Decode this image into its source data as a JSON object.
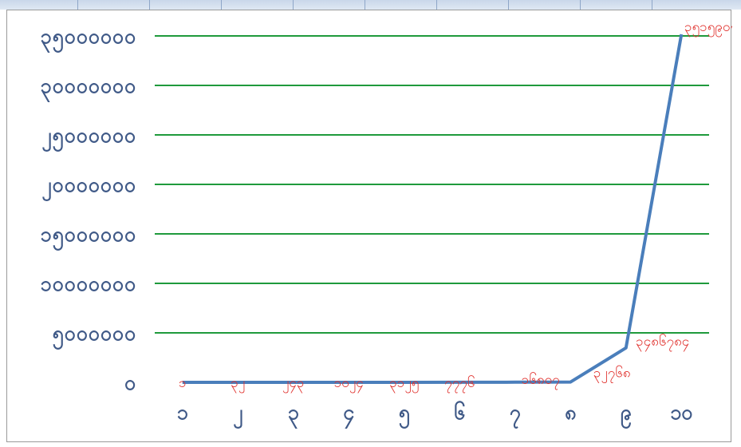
{
  "chart_data": {
    "type": "line",
    "title": "",
    "xlabel": "",
    "ylabel": "",
    "categories": [
      "၁",
      "၂",
      "၃",
      "၄",
      "၅",
      "၆",
      "၇",
      "၈",
      "၉",
      "၁၀"
    ],
    "series": [
      {
        "values": [
          1,
          32,
          243,
          1024,
          3125,
          7776,
          16807,
          32768,
          3486784,
          35159076
        ]
      }
    ],
    "data_labels": [
      "၁",
      "၃၂",
      "၂၄၃",
      "၁၀၂၄",
      "၃၁၂၅",
      "၇၇၇၆",
      "၁၆၈၀၇",
      "၃၂၇၆၈",
      "၃၄၈၆၇၈၄",
      "၃၅၁၅၉၀၇၆"
    ],
    "y_ticks": [
      {
        "value": 0,
        "label": "၀"
      },
      {
        "value": 5000000,
        "label": "၅၀၀၀၀၀၀"
      },
      {
        "value": 10000000,
        "label": "၁၀၀၀၀၀၀၀"
      },
      {
        "value": 15000000,
        "label": "၁၅၀၀၀၀၀၀"
      },
      {
        "value": 20000000,
        "label": "၂၀၀၀၀၀၀၀"
      },
      {
        "value": 25000000,
        "label": "၂၅၀၀၀၀၀၀"
      },
      {
        "value": 30000000,
        "label": "၃၀၀၀၀၀၀၀"
      },
      {
        "value": 35000000,
        "label": "၃၅၀၀၀၀၀၀"
      }
    ],
    "ylim": [
      0,
      35000000
    ],
    "grid": true,
    "legend": "none",
    "colors": {
      "line": "#4a7ebb",
      "grid": "#1f9a3c",
      "axis_text": "#3f5987",
      "data_label": "#e0302c"
    }
  }
}
